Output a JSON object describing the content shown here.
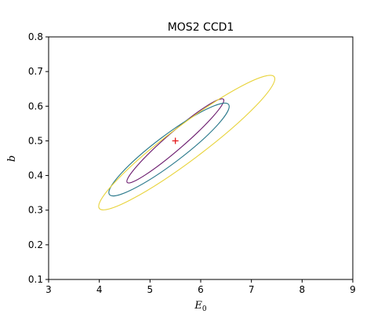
{
  "chart_data": {
    "type": "contour",
    "title": "MOS2 CCD1",
    "xlabel": "E",
    "xlabel_subscript": "0",
    "ylabel": "b",
    "xlim": [
      3,
      9
    ],
    "ylim": [
      0.1,
      0.8
    ],
    "x_ticks": [
      3,
      4,
      5,
      6,
      7,
      8,
      9
    ],
    "y_ticks": [
      0.1,
      0.2,
      0.3,
      0.4,
      0.5,
      0.6,
      0.7,
      0.8
    ],
    "y_tick_labels": [
      "0.1",
      "0.2",
      "0.3",
      "0.4",
      "0.5",
      "0.6",
      "0.7",
      "0.8"
    ],
    "grid": false,
    "best_fit": {
      "x": 5.5,
      "y": 0.5,
      "marker": "+",
      "color": "#e41a1c"
    },
    "contours": [
      {
        "level": 1,
        "color": "#6b1b6e",
        "end1": [
          4.55,
          0.38
        ],
        "end2": [
          6.45,
          0.62
        ],
        "half_width": 0.025
      },
      {
        "level": 2,
        "color": "#2b7a8c",
        "end1": [
          4.2,
          0.345
        ],
        "end2": [
          6.55,
          0.605
        ],
        "half_width": 0.04
      },
      {
        "level": 3,
        "color": "#e8d33a",
        "end1": [
          4.0,
          0.305
        ],
        "end2": [
          7.45,
          0.685
        ],
        "half_width": 0.05
      }
    ]
  }
}
